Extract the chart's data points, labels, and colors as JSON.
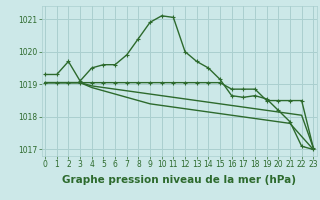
{
  "xlabel": "Graphe pression niveau de la mer (hPa)",
  "background_color": "#cce8e8",
  "grid_color": "#aacfcf",
  "line_color": "#2d6a2d",
  "hours": [
    0,
    1,
    2,
    3,
    4,
    5,
    6,
    7,
    8,
    9,
    10,
    11,
    12,
    13,
    14,
    15,
    16,
    17,
    18,
    19,
    20,
    21,
    22,
    23
  ],
  "series1": [
    1019.3,
    1019.3,
    1019.7,
    1019.1,
    1019.5,
    1019.6,
    1019.6,
    1019.9,
    1020.4,
    1020.9,
    1021.1,
    1021.05,
    1020.0,
    1019.7,
    1019.5,
    1019.15,
    1018.65,
    1018.6,
    1018.65,
    1018.55,
    1018.2,
    1017.85,
    1017.1,
    1017.0
  ],
  "series2": [
    1019.05,
    1019.05,
    1019.05,
    1019.05,
    1019.05,
    1019.05,
    1019.05,
    1019.05,
    1019.05,
    1019.05,
    1019.05,
    1019.05,
    1019.05,
    1019.05,
    1019.05,
    1019.05,
    1018.85,
    1018.85,
    1018.85,
    1018.5,
    1018.5,
    1018.5,
    1018.5,
    1017.05
  ],
  "series3": [
    1019.05,
    1019.05,
    1019.05,
    1019.05,
    1018.95,
    1018.9,
    1018.85,
    1018.8,
    1018.75,
    1018.7,
    1018.65,
    1018.6,
    1018.55,
    1018.5,
    1018.45,
    1018.4,
    1018.35,
    1018.3,
    1018.25,
    1018.2,
    1018.15,
    1018.1,
    1018.05,
    1017.05
  ],
  "series4": [
    1019.05,
    1019.05,
    1019.05,
    1019.05,
    1018.9,
    1018.8,
    1018.7,
    1018.6,
    1018.5,
    1018.4,
    1018.35,
    1018.3,
    1018.25,
    1018.2,
    1018.15,
    1018.1,
    1018.05,
    1018.0,
    1017.95,
    1017.9,
    1017.85,
    1017.8,
    1017.4,
    1017.0
  ],
  "ylim": [
    1016.8,
    1021.4
  ],
  "yticks": [
    1017,
    1018,
    1019,
    1020,
    1021
  ],
  "xticks": [
    0,
    1,
    2,
    3,
    4,
    5,
    6,
    7,
    8,
    9,
    10,
    11,
    12,
    13,
    14,
    15,
    16,
    17,
    18,
    19,
    20,
    21,
    22,
    23
  ],
  "marker_size": 2.5,
  "line_width": 1.0,
  "tick_fontsize": 5.5,
  "xlabel_fontsize": 7.5
}
